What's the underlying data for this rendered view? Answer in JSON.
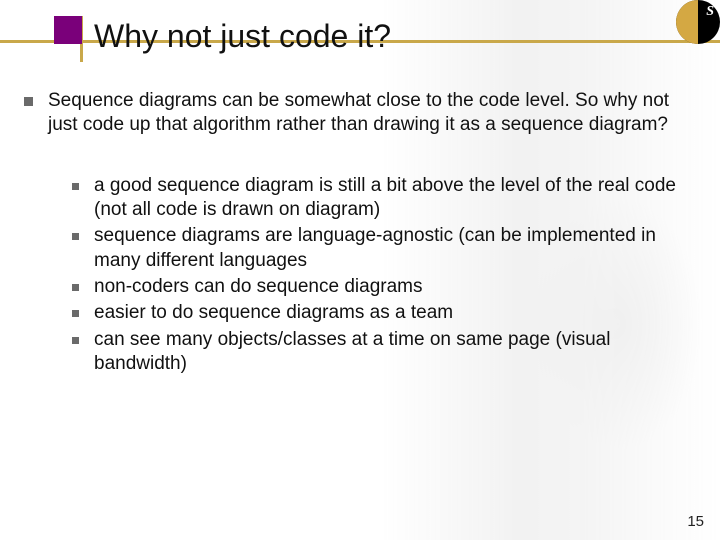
{
  "title": "Why not just code it?",
  "corner_letter": "S",
  "page_number": "15",
  "colors": {
    "accent_square": "#7a007a",
    "accent_line": "#c9a84a",
    "bullet": "#6a6a6a",
    "text": "#111111",
    "background": "#ffffff"
  },
  "typography": {
    "title_fontsize": 32,
    "body_fontsize": 19,
    "font_family": "Verdana"
  },
  "bullets_lvl1": [
    "Sequence diagrams can be somewhat close to the code level.  So why not just code up that algorithm rather than drawing it as a sequence diagram?"
  ],
  "bullets_lvl2": [
    "a good sequence diagram is still a bit above the level of the real code (not all code is drawn on diagram)",
    "sequence diagrams are language-agnostic (can be implemented in many different languages",
    "non-coders can do sequence diagrams",
    "easier to do sequence diagrams as a team",
    "can see many objects/classes at a time on same page (visual bandwidth)"
  ]
}
